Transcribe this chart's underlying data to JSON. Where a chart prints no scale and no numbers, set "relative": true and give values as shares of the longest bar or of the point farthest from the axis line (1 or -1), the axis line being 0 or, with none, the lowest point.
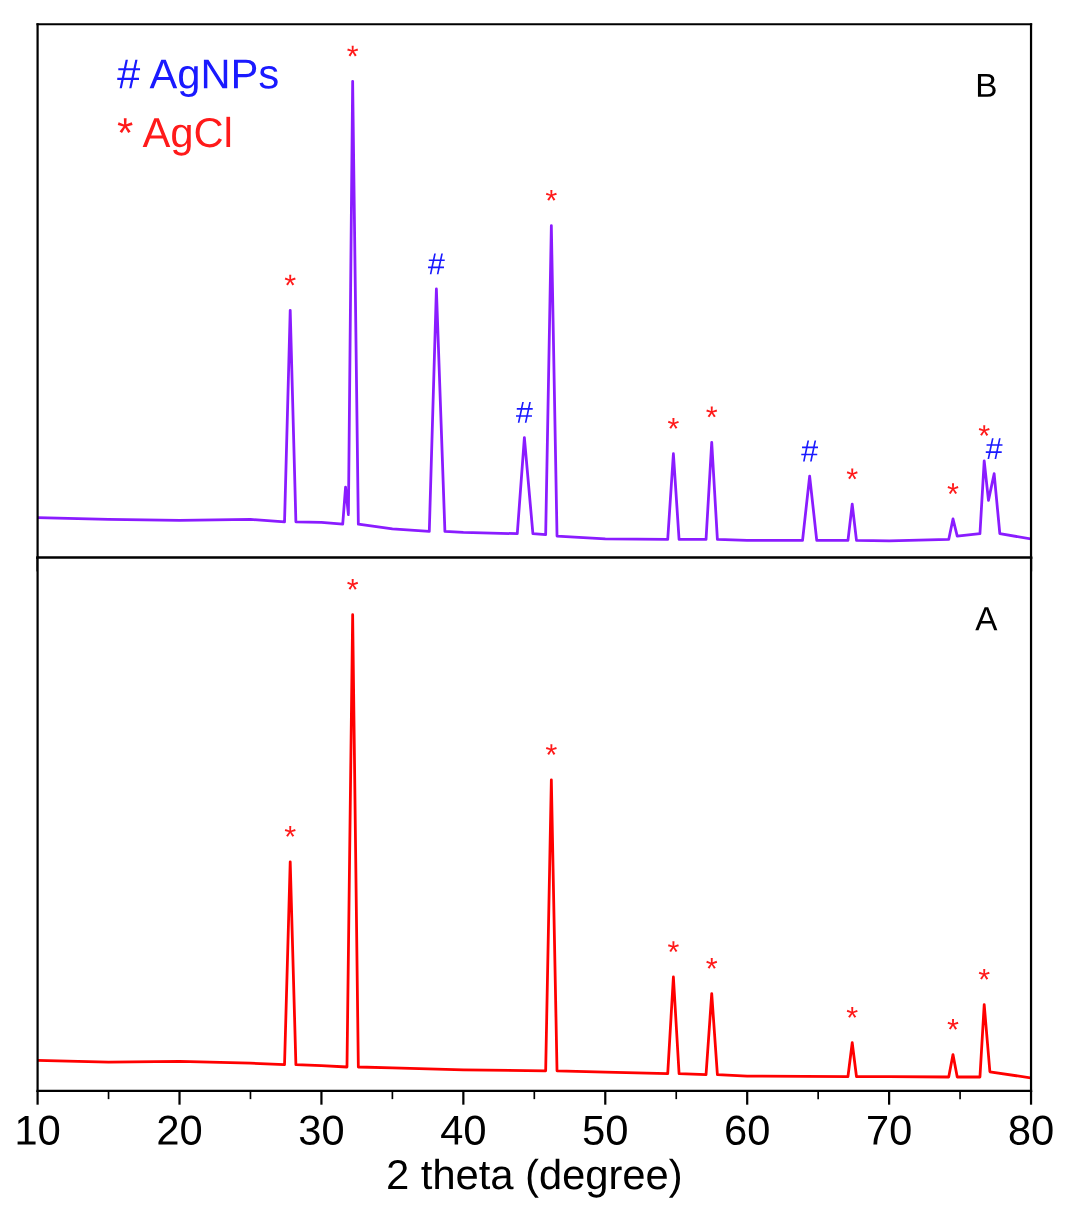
{
  "chart_data": [
    {
      "type": "line",
      "title": "B",
      "relative": true,
      "xlim": [
        10,
        80
      ],
      "xticks": [
        10,
        20,
        30,
        40,
        50,
        60,
        70,
        80
      ],
      "tick_labels": false,
      "series": [
        {
          "color": "#8a1cff",
          "x": [
            10,
            15,
            20,
            25,
            27.4,
            27.8,
            28.2,
            30,
            31.5,
            31.7,
            31.9,
            32.2,
            32.6,
            35,
            37.6,
            38.1,
            38.7,
            40,
            43.8,
            44.3,
            44.9,
            45.8,
            46.2,
            46.6,
            50,
            54.4,
            54.8,
            55.2,
            57.1,
            57.5,
            57.9,
            60,
            63.9,
            64.4,
            64.9,
            67.1,
            67.4,
            67.7,
            70,
            74.2,
            74.5,
            74.8,
            76.4,
            76.7,
            77.0,
            77.4,
            77.8,
            80
          ],
          "values": [
            0.084,
            0.08,
            0.078,
            0.08,
            0.075,
            0.519,
            0.075,
            0.074,
            0.07,
            0.148,
            0.09,
            1.0,
            0.07,
            0.06,
            0.055,
            0.564,
            0.055,
            0.053,
            0.05,
            0.252,
            0.05,
            0.048,
            0.697,
            0.045,
            0.039,
            0.038,
            0.218,
            0.038,
            0.038,
            0.242,
            0.038,
            0.036,
            0.036,
            0.171,
            0.036,
            0.036,
            0.112,
            0.036,
            0.035,
            0.038,
            0.081,
            0.045,
            0.05,
            0.203,
            0.12,
            0.176,
            0.05,
            0.039
          ]
        }
      ],
      "annotations": [
        "# AgNPs",
        "* AgCl",
        {
          "text": "*",
          "x": 27.8,
          "y": 0.519
        },
        {
          "text": "*",
          "x": 32.2,
          "y": 1.0
        },
        {
          "text": "#",
          "x": 38.1,
          "y": 0.564
        },
        {
          "text": "#",
          "x": 44.3,
          "y": 0.252
        },
        {
          "text": "*",
          "x": 46.2,
          "y": 0.697
        },
        {
          "text": "*",
          "x": 54.8,
          "y": 0.218
        },
        {
          "text": "*",
          "x": 57.5,
          "y": 0.242
        },
        {
          "text": "#",
          "x": 64.4,
          "y": 0.171
        },
        {
          "text": "*",
          "x": 67.4,
          "y": 0.112
        },
        {
          "text": "*",
          "x": 74.5,
          "y": 0.081
        },
        {
          "text": "*",
          "x": 76.7,
          "y": 0.203
        },
        {
          "text": "#",
          "x": 77.4,
          "y": 0.176
        }
      ]
    },
    {
      "type": "line",
      "title": "A",
      "relative": true,
      "xlim": [
        10,
        80
      ],
      "xticks": [
        10,
        20,
        30,
        40,
        50,
        60,
        70,
        80
      ],
      "tick_labels": "x",
      "xlabel": "2 theta (degree)",
      "series": [
        {
          "color": "#ff0000",
          "x": [
            10,
            15,
            20,
            25,
            27.4,
            27.8,
            28.2,
            30,
            31.8,
            32.2,
            32.6,
            35,
            40,
            45.8,
            46.2,
            46.6,
            50,
            54.4,
            54.8,
            55.2,
            57.1,
            57.5,
            57.9,
            60,
            67.1,
            67.4,
            67.7,
            70,
            74.2,
            74.5,
            74.8,
            76.4,
            76.7,
            77.1,
            80
          ],
          "values": [
            0.064,
            0.06,
            0.062,
            0.058,
            0.055,
            0.481,
            0.055,
            0.053,
            0.05,
            1.0,
            0.05,
            0.048,
            0.044,
            0.042,
            0.653,
            0.042,
            0.039,
            0.036,
            0.239,
            0.036,
            0.034,
            0.204,
            0.034,
            0.031,
            0.03,
            0.101,
            0.03,
            0.03,
            0.029,
            0.076,
            0.029,
            0.029,
            0.181,
            0.04,
            0.027
          ]
        }
      ],
      "annotations": [
        {
          "text": "*",
          "x": 27.8,
          "y": 0.481
        },
        {
          "text": "*",
          "x": 32.2,
          "y": 1.0
        },
        {
          "text": "*",
          "x": 46.2,
          "y": 0.653
        },
        {
          "text": "*",
          "x": 54.8,
          "y": 0.239
        },
        {
          "text": "*",
          "x": 57.5,
          "y": 0.204
        },
        {
          "text": "*",
          "x": 67.4,
          "y": 0.101
        },
        {
          "text": "*",
          "x": 74.5,
          "y": 0.076
        },
        {
          "text": "*",
          "x": 76.7,
          "y": 0.181
        }
      ]
    }
  ]
}
